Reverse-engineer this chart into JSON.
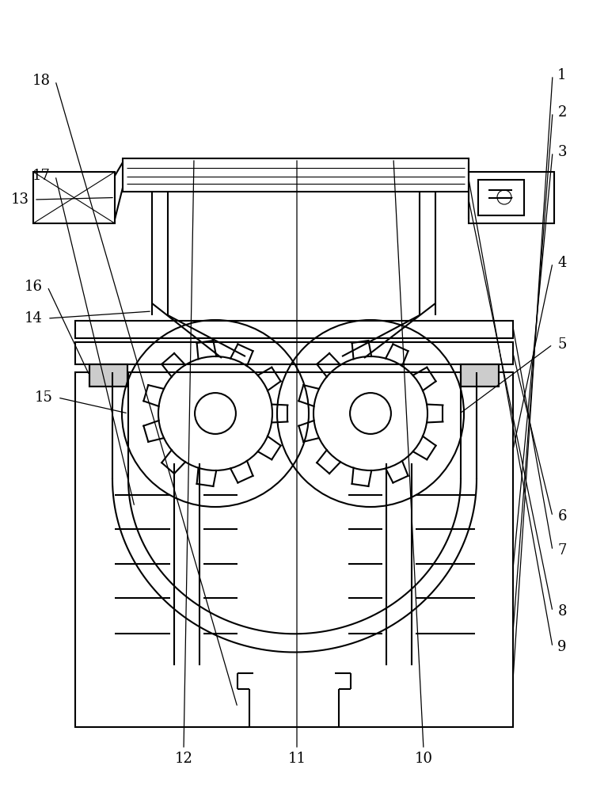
{
  "bg_color": "#ffffff",
  "line_color": "#000000",
  "lw": 1.5,
  "lw_thin": 0.8,
  "label_fontsize": 13,
  "fig_width": 7.44,
  "fig_height": 10.0,
  "dpi": 100,
  "labels_right": [
    [
      "1",
      710,
      905
    ],
    [
      "2",
      710,
      858
    ],
    [
      "3",
      710,
      808
    ],
    [
      "4",
      710,
      668
    ],
    [
      "5",
      710,
      565
    ],
    [
      "6",
      710,
      348
    ],
    [
      "7",
      710,
      305
    ],
    [
      "8",
      710,
      228
    ],
    [
      "9",
      710,
      183
    ]
  ],
  "labels_top": [
    [
      "10",
      535,
      42
    ],
    [
      "11",
      375,
      42
    ],
    [
      "12",
      232,
      42
    ]
  ],
  "labels_left": [
    [
      "13",
      25,
      748
    ],
    [
      "14",
      42,
      598
    ],
    [
      "15",
      55,
      498
    ],
    [
      "16",
      42,
      638
    ],
    [
      "17",
      52,
      778
    ],
    [
      "18",
      52,
      898
    ]
  ]
}
